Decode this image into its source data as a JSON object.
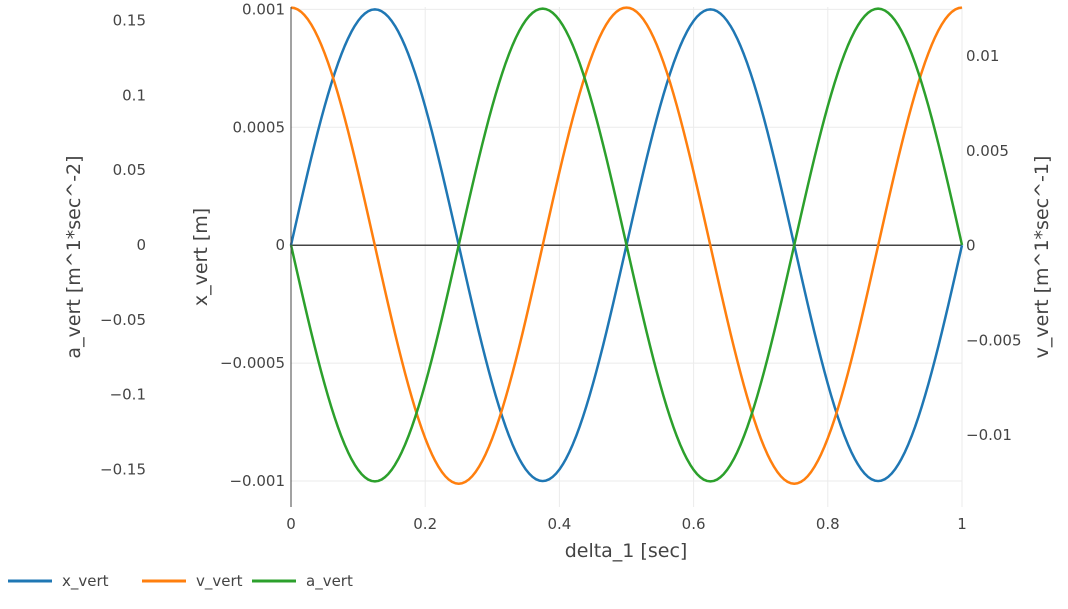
{
  "chart_data": {
    "type": "line",
    "title": "",
    "xlabel": "delta_1 [sec]",
    "xlim": [
      0,
      1
    ],
    "x_ticks": [
      "0",
      "0.2",
      "0.4",
      "0.6",
      "0.8",
      "1"
    ],
    "x_tick_values": [
      0,
      0.2,
      0.4,
      0.6,
      0.8,
      1
    ],
    "y_axes": {
      "x_vert": {
        "label": "x_vert [m]",
        "range": [
          -0.00111,
          0.00101
        ],
        "ticks": [
          "0.001",
          "0.0005",
          "0",
          "−0.0005",
          "−0.001"
        ],
        "tick_values": [
          0.001,
          0.0005,
          0,
          -0.0005,
          -0.001
        ]
      },
      "a_vert": {
        "label": "a_vert [m^1*sec^-2]",
        "range": [
          -0.175,
          0.159
        ],
        "ticks": [
          "0.15",
          "0.1",
          "0.05",
          "0",
          "−0.05",
          "−0.1",
          "−0.15"
        ],
        "tick_values": [
          0.15,
          0.1,
          0.05,
          0,
          -0.05,
          -0.1,
          -0.15
        ]
      },
      "v_vert": {
        "label": "v_vert [m^1*sec^-1]",
        "range": [
          -0.0138,
          0.0126
        ],
        "ticks": [
          "0.01",
          "0.005",
          "0",
          "−0.005",
          "−0.01"
        ],
        "tick_values": [
          0.01,
          0.005,
          0,
          -0.005,
          -0.01
        ]
      }
    },
    "series": [
      {
        "name": "x_vert",
        "axis": "x_vert",
        "color": "#1f77b4",
        "amplitude": 0.001,
        "frequency_hz": 2,
        "phase": "sin"
      },
      {
        "name": "v_vert",
        "axis": "v_vert",
        "color": "#ff7f0e",
        "amplitude": 0.01257,
        "frequency_hz": 2,
        "phase": "cos"
      },
      {
        "name": "a_vert",
        "axis": "a_vert",
        "color": "#2ca02c",
        "amplitude": 0.1579,
        "frequency_hz": 2,
        "phase": "-sin"
      }
    ],
    "samples": 200,
    "legend_position": "bottom-left",
    "grid": true
  }
}
